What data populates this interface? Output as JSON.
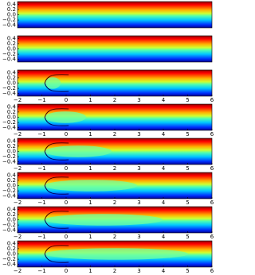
{
  "chart_data": [
    {
      "type": "heatmap",
      "xlim": [
        -2,
        6
      ],
      "ylim": [
        -0.5,
        0.5
      ],
      "yticks": [
        0.4,
        0.2,
        {
          "value": 0,
          "label": "0.0"
        },
        {
          "value": -0.2,
          "label": "−0.2"
        },
        {
          "value": -0.4,
          "label": "−0.4"
        }
      ]
    },
    {
      "type": "heatmap",
      "xlim": [
        -2,
        6
      ],
      "ylim": [
        -0.5,
        0.5
      ],
      "yticks": [
        0.4,
        0.2,
        {
          "value": 0,
          "label": "0.0"
        },
        {
          "value": -0.2,
          "label": "−0.2"
        },
        {
          "value": -0.4,
          "label": "−0.4"
        }
      ]
    },
    {
      "type": "heatmap",
      "xlim": [
        -2,
        6
      ],
      "ylim": [
        -0.5,
        0.5
      ],
      "xticks": [
        {
          "value": -2,
          "label": "−2"
        },
        {
          "value": -1,
          "label": "−1"
        },
        0,
        1,
        2,
        3,
        4,
        5,
        6
      ],
      "yticks": [
        0.4,
        0.2,
        {
          "value": 0,
          "label": "0.0"
        },
        {
          "value": -0.2,
          "label": "−0.2"
        },
        {
          "value": -0.4,
          "label": "−0.4"
        }
      ]
    },
    {
      "type": "heatmap",
      "xlim": [
        -2,
        6
      ],
      "ylim": [
        -0.5,
        0.5
      ],
      "xticks": [
        {
          "value": -2,
          "label": "−2"
        },
        {
          "value": -1,
          "label": "−1"
        },
        0,
        1,
        2,
        3,
        4,
        5,
        6
      ],
      "yticks": [
        0.4,
        0.2,
        {
          "value": 0,
          "label": "0.0"
        },
        {
          "value": -0.2,
          "label": "−0.2"
        },
        {
          "value": -0.4,
          "label": "−0.4"
        }
      ]
    },
    {
      "type": "heatmap",
      "xlim": [
        -2,
        6
      ],
      "ylim": [
        -0.5,
        0.5
      ],
      "xticks": [
        {
          "value": -2,
          "label": "−2"
        },
        {
          "value": -1,
          "label": "−1"
        },
        0,
        1,
        2,
        3,
        4,
        5,
        6
      ],
      "yticks": [
        0.4,
        0.2,
        {
          "value": 0,
          "label": "0.0"
        },
        {
          "value": -0.2,
          "label": "−0.2"
        },
        {
          "value": -0.4,
          "label": "−0.4"
        }
      ]
    },
    {
      "type": "heatmap",
      "xlim": [
        -2,
        6
      ],
      "ylim": [
        -0.5,
        0.5
      ],
      "xticks": [
        {
          "value": -2,
          "label": "−2"
        },
        {
          "value": -1,
          "label": "−1"
        },
        0,
        1,
        2,
        3,
        4,
        5,
        6
      ],
      "yticks": [
        0.4,
        0.2,
        {
          "value": 0,
          "label": "0.0"
        },
        {
          "value": -0.2,
          "label": "−0.2"
        },
        {
          "value": -0.4,
          "label": "−0.4"
        }
      ]
    },
    {
      "type": "heatmap",
      "xlim": [
        -2,
        6
      ],
      "ylim": [
        -0.5,
        0.5
      ],
      "xticks": [
        {
          "value": -2,
          "label": "−2"
        },
        {
          "value": -1,
          "label": "−1"
        },
        0,
        1,
        2,
        3,
        4,
        5,
        6
      ],
      "yticks": [
        0.4,
        0.2,
        {
          "value": 0,
          "label": "0.0"
        },
        {
          "value": -0.2,
          "label": "−0.2"
        },
        {
          "value": -0.4,
          "label": "−0.4"
        }
      ]
    },
    {
      "type": "heatmap",
      "xlim": [
        -2,
        6
      ],
      "ylim": [
        -0.5,
        0.5
      ],
      "xticks": [
        {
          "value": -2,
          "label": "−2"
        },
        {
          "value": -1,
          "label": "−1"
        },
        0,
        1,
        2,
        3,
        4,
        5,
        6
      ],
      "yticks": [
        0.4,
        0.2,
        {
          "value": 0,
          "label": "0.0"
        },
        {
          "value": -0.2,
          "label": "−0.2"
        },
        {
          "value": -0.4,
          "label": "−0.4"
        }
      ]
    }
  ]
}
